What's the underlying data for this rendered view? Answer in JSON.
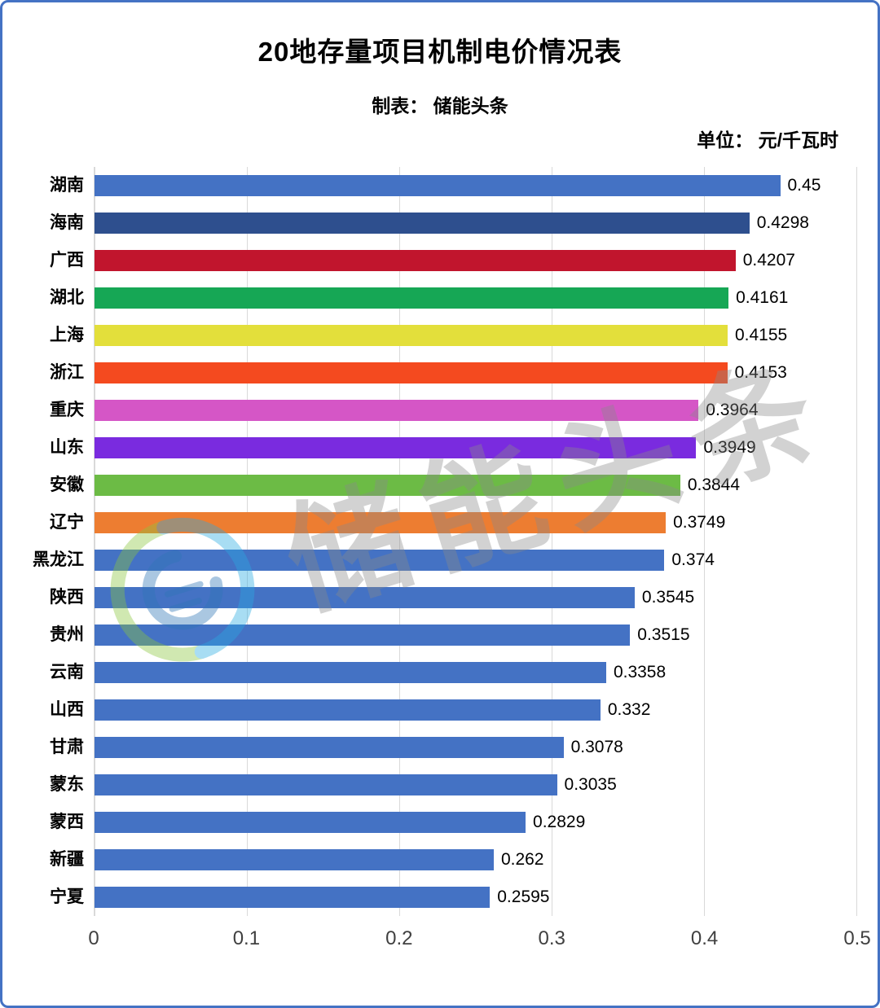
{
  "header": {
    "title": "20地存量项目机制电价情况表",
    "subtitle": "制表： 储能头条",
    "unit_label": "单位： 元/千瓦时"
  },
  "watermark": {
    "text": "储能头条"
  },
  "chart_data": {
    "type": "bar",
    "orientation": "horizontal",
    "title": "20地存量项目机制电价情况表",
    "unit": "元/千瓦时",
    "categories": [
      "湖南",
      "海南",
      "广西",
      "湖北",
      "上海",
      "浙江",
      "重庆",
      "山东",
      "安徽",
      "辽宁",
      "黑龙江",
      "陕西",
      "贵州",
      "云南",
      "山西",
      "甘肃",
      "蒙东",
      "蒙西",
      "新疆",
      "宁夏"
    ],
    "values": [
      0.45,
      0.4298,
      0.4207,
      0.4161,
      0.4155,
      0.4153,
      0.3964,
      0.3949,
      0.3844,
      0.3749,
      0.374,
      0.3545,
      0.3515,
      0.3358,
      0.332,
      0.3078,
      0.3035,
      0.2829,
      0.262,
      0.2595
    ],
    "bar_colors": [
      "#4472C4",
      "#2E4F8E",
      "#C1152D",
      "#16A755",
      "#E3DF3B",
      "#F44A1F",
      "#D556C6",
      "#7A2BDF",
      "#6CBB45",
      "#ED7D31",
      "#4472C4",
      "#4472C4",
      "#4472C4",
      "#4472C4",
      "#4472C4",
      "#4472C4",
      "#4472C4",
      "#4472C4",
      "#4472C4",
      "#4472C4"
    ],
    "xlim": [
      0,
      0.5
    ],
    "x_ticks": [
      "0",
      "0.1",
      "0.2",
      "0.3",
      "0.4",
      "0.5"
    ],
    "grid": true,
    "legend": false
  }
}
